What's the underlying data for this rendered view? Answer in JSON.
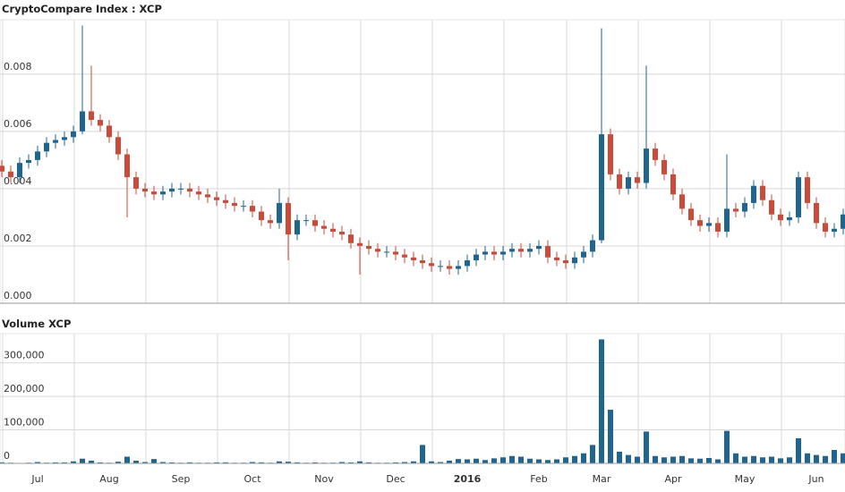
{
  "chart_data": [
    {
      "type": "candlestick",
      "title": "CryptoCompare Index : XCP",
      "open": [
        0.0048,
        0.0046,
        0.0044,
        0.0049,
        0.005,
        0.0053,
        0.0056,
        0.0057,
        0.0058,
        0.006,
        0.0067,
        0.0064,
        0.0062,
        0.0058,
        0.0052,
        0.0044,
        0.004,
        0.0039,
        0.0038,
        0.0039,
        0.004,
        0.004,
        0.0039,
        0.0038,
        0.0037,
        0.0036,
        0.0035,
        0.0034,
        0.0034,
        0.0032,
        0.0029,
        0.0028,
        0.0035,
        0.0024,
        0.0029,
        0.0029,
        0.0027,
        0.0026,
        0.0025,
        0.0024,
        0.0021,
        0.002,
        0.0019,
        0.0018,
        0.0018,
        0.0017,
        0.0016,
        0.0015,
        0.0014,
        0.0013,
        0.0013,
        0.0012,
        0.0013,
        0.0015,
        0.0017,
        0.0018,
        0.0017,
        0.0018,
        0.0019,
        0.0018,
        0.0019,
        0.002,
        0.0016,
        0.0015,
        0.0014,
        0.0016,
        0.0018,
        0.0022,
        0.0059,
        0.0045,
        0.004,
        0.0044,
        0.0042,
        0.0054,
        0.005,
        0.0045,
        0.0038,
        0.0033,
        0.0029,
        0.0027,
        0.0028,
        0.0025,
        0.0033,
        0.0032,
        0.0035,
        0.0041,
        0.0036,
        0.0031,
        0.0029,
        0.003,
        0.0044,
        0.0035,
        0.0028,
        0.0025,
        0.0026
      ],
      "high": [
        0.005,
        0.0048,
        0.0051,
        0.0052,
        0.0055,
        0.0058,
        0.0059,
        0.006,
        0.0062,
        0.0097,
        0.0083,
        0.0066,
        0.0064,
        0.006,
        0.0054,
        0.0046,
        0.0042,
        0.0041,
        0.0041,
        0.0042,
        0.0042,
        0.0042,
        0.0041,
        0.004,
        0.0039,
        0.0038,
        0.0037,
        0.0036,
        0.0036,
        0.0034,
        0.0031,
        0.004,
        0.0037,
        0.0031,
        0.0031,
        0.0031,
        0.0029,
        0.0028,
        0.0027,
        0.0026,
        0.0023,
        0.0022,
        0.0021,
        0.002,
        0.002,
        0.0019,
        0.0018,
        0.0017,
        0.0016,
        0.0015,
        0.0015,
        0.0015,
        0.0017,
        0.0019,
        0.002,
        0.002,
        0.002,
        0.0021,
        0.0021,
        0.0021,
        0.0022,
        0.0022,
        0.0018,
        0.0017,
        0.0018,
        0.002,
        0.0024,
        0.0096,
        0.0061,
        0.0047,
        0.0046,
        0.0046,
        0.0083,
        0.0056,
        0.0052,
        0.0047,
        0.004,
        0.0035,
        0.0031,
        0.003,
        0.003,
        0.0052,
        0.0035,
        0.0037,
        0.0043,
        0.0043,
        0.0038,
        0.0033,
        0.0032,
        0.0046,
        0.0046,
        0.0037,
        0.003,
        0.0028,
        0.0033
      ],
      "low": [
        0.0044,
        0.0042,
        0.0042,
        0.0047,
        0.0048,
        0.0051,
        0.0054,
        0.0055,
        0.0056,
        0.0059,
        0.0062,
        0.006,
        0.0056,
        0.005,
        0.003,
        0.0038,
        0.0037,
        0.0036,
        0.0036,
        0.0037,
        0.0038,
        0.0037,
        0.0036,
        0.0035,
        0.0034,
        0.0033,
        0.0032,
        0.0032,
        0.003,
        0.0027,
        0.0026,
        0.0026,
        0.0015,
        0.0022,
        0.0027,
        0.0025,
        0.0024,
        0.0023,
        0.0022,
        0.0019,
        0.001,
        0.0017,
        0.0016,
        0.0016,
        0.0015,
        0.0014,
        0.0013,
        0.0012,
        0.0011,
        0.0011,
        0.001,
        0.001,
        0.0011,
        0.0013,
        0.0015,
        0.0015,
        0.0015,
        0.0016,
        0.0016,
        0.0016,
        0.0017,
        0.0014,
        0.0013,
        0.0012,
        0.0012,
        0.0014,
        0.0016,
        0.0021,
        0.0043,
        0.0038,
        0.0038,
        0.004,
        0.004,
        0.0048,
        0.0043,
        0.0036,
        0.0031,
        0.0027,
        0.0025,
        0.0025,
        0.0023,
        0.0023,
        0.003,
        0.003,
        0.0033,
        0.0034,
        0.0029,
        0.0027,
        0.0027,
        0.0028,
        0.0033,
        0.0026,
        0.0023,
        0.0023,
        0.0024
      ],
      "close": [
        0.0046,
        0.0044,
        0.0049,
        0.005,
        0.0053,
        0.0056,
        0.0057,
        0.0058,
        0.006,
        0.0067,
        0.0064,
        0.0062,
        0.0058,
        0.0052,
        0.0044,
        0.004,
        0.0039,
        0.0038,
        0.0039,
        0.004,
        0.004,
        0.0039,
        0.0038,
        0.0037,
        0.0036,
        0.0035,
        0.0034,
        0.0034,
        0.0032,
        0.0029,
        0.0028,
        0.0035,
        0.0024,
        0.0029,
        0.0029,
        0.0027,
        0.0026,
        0.0025,
        0.0024,
        0.0021,
        0.002,
        0.0019,
        0.0018,
        0.0018,
        0.0017,
        0.0016,
        0.0015,
        0.0014,
        0.0013,
        0.0013,
        0.0012,
        0.0013,
        0.0015,
        0.0017,
        0.0018,
        0.0017,
        0.0018,
        0.0019,
        0.0018,
        0.0019,
        0.002,
        0.0016,
        0.0015,
        0.0014,
        0.0016,
        0.0018,
        0.0022,
        0.0059,
        0.0045,
        0.004,
        0.0044,
        0.0042,
        0.0054,
        0.005,
        0.0045,
        0.0038,
        0.0033,
        0.0029,
        0.0027,
        0.0028,
        0.0025,
        0.0033,
        0.0032,
        0.0035,
        0.0041,
        0.0036,
        0.0031,
        0.0029,
        0.003,
        0.0044,
        0.0035,
        0.0028,
        0.0025,
        0.0026,
        0.0031
      ],
      "up_color": "#1f6591",
      "down_color": "#cc4a3a",
      "ylim": [
        0,
        0.0099
      ],
      "yticks": [
        {
          "value": 0,
          "label": "0.000"
        },
        {
          "value": 0.002,
          "label": "0.002"
        },
        {
          "value": 0.004,
          "label": "0.004"
        },
        {
          "value": 0.006,
          "label": "0.006"
        },
        {
          "value": 0.008,
          "label": "0.008"
        }
      ],
      "grid": true
    },
    {
      "type": "bar",
      "title": "Volume XCP",
      "categories": [
        null,
        null,
        null,
        null,
        "Jul",
        null,
        null,
        null,
        null,
        null,
        null,
        null,
        "Aug",
        null,
        null,
        null,
        null,
        null,
        null,
        null,
        "Sep",
        null,
        null,
        null,
        null,
        null,
        null,
        null,
        "Oct",
        null,
        null,
        null,
        null,
        null,
        null,
        null,
        "Nov",
        null,
        null,
        null,
        null,
        null,
        null,
        null,
        "Dec",
        null,
        null,
        null,
        null,
        null,
        null,
        null,
        "2016",
        null,
        null,
        null,
        null,
        null,
        null,
        null,
        "Feb",
        null,
        null,
        null,
        null,
        null,
        null,
        "Mar",
        null,
        null,
        null,
        null,
        null,
        null,
        null,
        "Apr",
        null,
        null,
        null,
        null,
        null,
        null,
        null,
        "May",
        null,
        null,
        null,
        null,
        null,
        null,
        null,
        "Jun",
        null,
        null,
        null
      ],
      "values": [
        3000,
        2000,
        1000,
        2000,
        4000,
        2000,
        3000,
        3000,
        6000,
        14000,
        8000,
        3000,
        2000,
        5000,
        20000,
        8000,
        4000,
        13000,
        4000,
        3000,
        2000,
        3000,
        2000,
        2000,
        3000,
        3000,
        2000,
        2000,
        4000,
        3000,
        2000,
        6000,
        5000,
        3000,
        2000,
        3000,
        2000,
        2000,
        4000,
        3000,
        6000,
        3000,
        2000,
        2000,
        3000,
        4000,
        6000,
        55000,
        6000,
        4000,
        8000,
        13000,
        12000,
        14000,
        10000,
        15000,
        18000,
        22000,
        20000,
        14000,
        12000,
        10000,
        12000,
        18000,
        22000,
        30000,
        55000,
        370000,
        160000,
        35000,
        25000,
        20000,
        95000,
        22000,
        18000,
        20000,
        22000,
        15000,
        14000,
        16000,
        12000,
        97000,
        30000,
        20000,
        22000,
        18000,
        20000,
        15000,
        18000,
        75000,
        30000,
        25000,
        22000,
        40000,
        30000
      ],
      "color": "#1f6591",
      "ylim": [
        0,
        387000
      ],
      "yticks": [
        0,
        {
          "value": 100000,
          "label": "100,000"
        },
        {
          "value": 200000,
          "label": "200,000"
        },
        {
          "value": 300000,
          "label": "300,000"
        }
      ],
      "grid": true
    }
  ]
}
